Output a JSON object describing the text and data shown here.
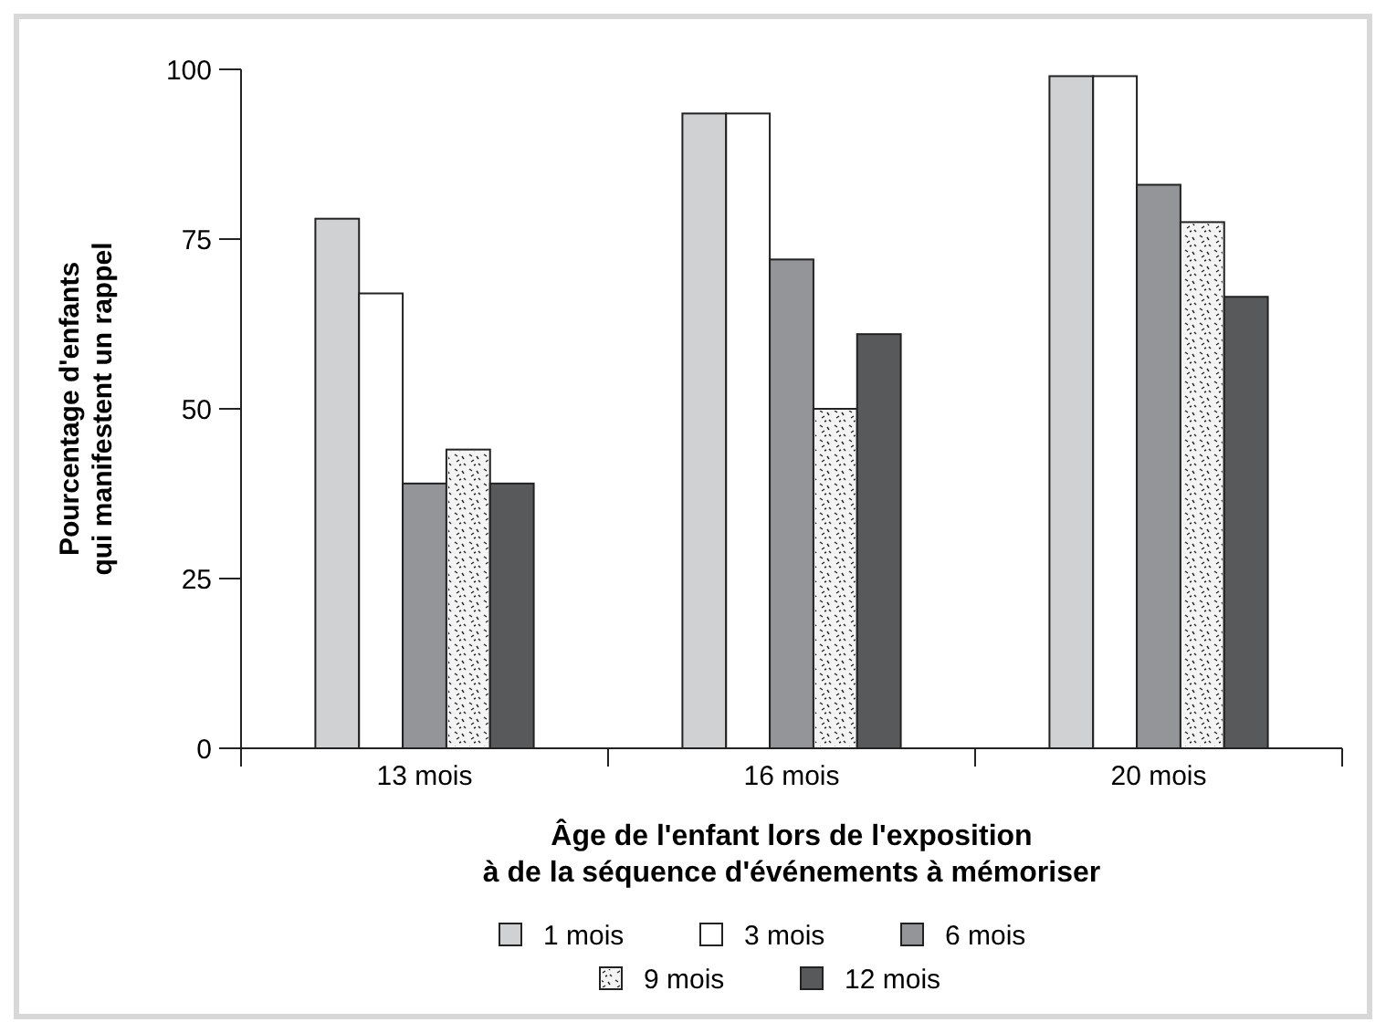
{
  "chart_data": {
    "type": "bar",
    "categories": [
      "13 mois",
      "16 mois",
      "20 mois"
    ],
    "series": [
      {
        "name": "1 mois",
        "color": "#d0d1d3",
        "values": [
          78,
          93.5,
          99
        ]
      },
      {
        "name": "3 mois",
        "color": "#ffffff",
        "values": [
          67,
          93.5,
          99
        ]
      },
      {
        "name": "6 mois",
        "color": "#939598",
        "values": [
          39,
          72,
          83
        ]
      },
      {
        "name": "9 mois",
        "color": "#f4f4f4",
        "values": [
          44,
          50,
          77.5
        ]
      },
      {
        "name": "12 mois",
        "color": "#58595b",
        "values": [
          39,
          61,
          66.5
        ]
      }
    ],
    "ylim": [
      0,
      100
    ],
    "yticks": [
      0,
      25,
      50,
      75,
      100
    ],
    "ylabel": "Pourcentage d'enfants\nqui manifestent un rappel",
    "xlabel": "Âge de l'enfant lors de l'exposition\nà de la séquence d'événements à mémoriser",
    "grid": false,
    "legend": "bottom"
  }
}
